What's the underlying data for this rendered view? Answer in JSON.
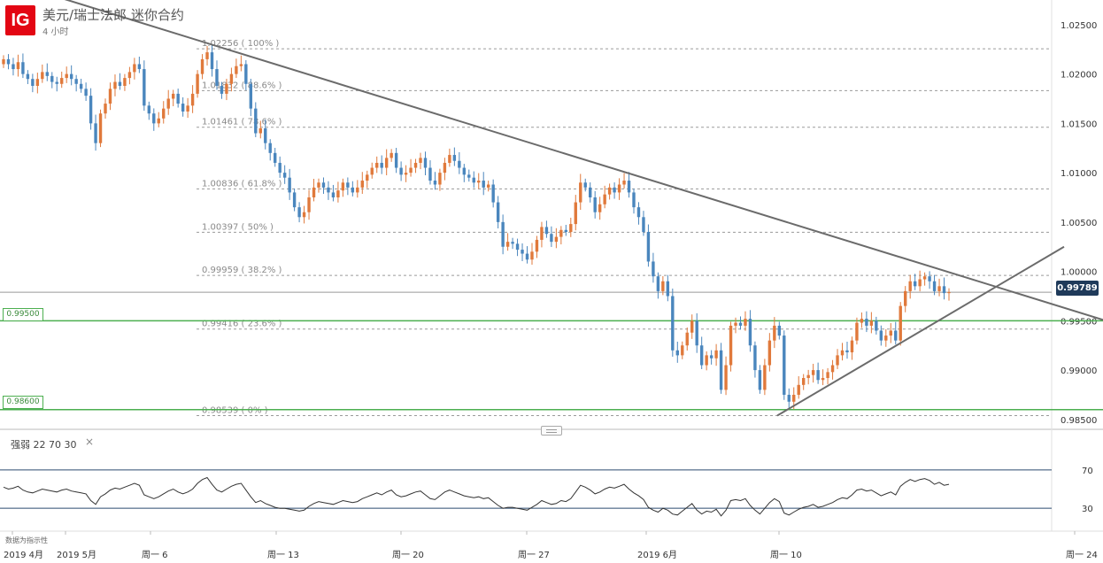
{
  "header": {
    "logo": "IG",
    "title": "美元/瑞士法郎 迷你合约",
    "subtitle": "4 小时"
  },
  "indicator": {
    "label": "强弱  22  70  30",
    "close": "×"
  },
  "source": "数据为指示性",
  "last_price_label": "0.99789",
  "colors": {
    "up": "#e0793b",
    "down": "#4a86bd",
    "trend": "#6b6b6b",
    "level": "#4caf50",
    "fib": "#9a9a9a",
    "rsi": "#333333"
  },
  "chart_data": {
    "type": "candlestick",
    "y_axis": {
      "min": 0.984,
      "max": 1.0275,
      "ticks": [
        "1.02500",
        "1.02000",
        "1.01500",
        "1.01000",
        "1.00500",
        "1.00000",
        "0.99500",
        "0.99000",
        "0.98500"
      ]
    },
    "x_axis": {
      "ticks": [
        "2019 4月",
        "2019 5月",
        "周一 6",
        "周一 13",
        "周一 20",
        "周一 27",
        "2019 6月",
        "周一 10",
        "周一 24"
      ]
    },
    "fib_levels": [
      {
        "label": "1.02256 ( 100% )",
        "value": 1.02256
      },
      {
        "label": "1.01832 ( 88.6% )",
        "value": 1.01832
      },
      {
        "label": "1.01461 ( 78.6% )",
        "value": 1.01461
      },
      {
        "label": "1.00836 ( 61.8% )",
        "value": 1.00836
      },
      {
        "label": "1.00397 ( 50% )",
        "value": 1.00397
      },
      {
        "label": "0.99959 ( 38.2% )",
        "value": 0.99959
      },
      {
        "label": "0.99416 ( 23.6% )",
        "value": 0.99416
      },
      {
        "label": "0.98539 ( 0% )",
        "value": 0.98539
      }
    ],
    "horizontal_levels": [
      {
        "label": "0.99500",
        "value": 0.995
      },
      {
        "label": "0.98600",
        "value": 0.986
      }
    ],
    "last_price": 0.99789,
    "closes": [
      1.0215,
      1.021,
      1.0205,
      1.0212,
      1.02,
      1.0195,
      1.0188,
      1.0195,
      1.0202,
      1.0198,
      1.0192,
      1.019,
      1.0196,
      1.02,
      1.0195,
      1.019,
      1.0185,
      1.0178,
      1.015,
      1.013,
      1.016,
      1.017,
      1.0185,
      1.0192,
      1.0188,
      1.0196,
      1.0202,
      1.021,
      1.0205,
      1.0168,
      1.016,
      1.015,
      1.0155,
      1.0165,
      1.0175,
      1.018,
      1.017,
      1.0162,
      1.0168,
      1.018,
      1.02,
      1.0215,
      1.0222,
      1.0205,
      1.0188,
      1.018,
      1.019,
      1.02,
      1.0208,
      1.021,
      1.019,
      1.0165,
      1.014,
      1.0145,
      1.013,
      1.012,
      1.011,
      1.01,
      1.0095,
      1.008,
      1.0065,
      1.0055,
      1.006,
      1.0075,
      1.0085,
      1.009,
      1.0085,
      1.008,
      1.0075,
      1.0082,
      1.009,
      1.0085,
      1.008,
      1.0085,
      1.0092,
      1.0098,
      1.0105,
      1.011,
      1.0105,
      1.0115,
      1.012,
      1.0105,
      1.0098,
      1.01,
      1.0105,
      1.011,
      1.0115,
      1.0105,
      1.0092,
      1.0088,
      1.01,
      1.011,
      1.0118,
      1.0112,
      1.0105,
      1.0098,
      1.0095,
      1.009,
      1.0092,
      1.0085,
      1.0088,
      1.007,
      1.005,
      1.0025,
      1.003,
      1.0028,
      1.0022,
      1.0018,
      1.0012,
      1.002,
      1.0032,
      1.0045,
      1.0038,
      1.003,
      1.0035,
      1.0042,
      1.004,
      1.0048,
      1.007,
      1.009,
      1.0085,
      1.0075,
      1.006,
      1.0068,
      1.0078,
      1.0085,
      1.008,
      1.0088,
      1.0092,
      1.008,
      1.0065,
      1.0055,
      1.004,
      1.001,
      0.9995,
      0.998,
      0.999,
      0.9975,
      0.992,
      0.9915,
      0.9925,
      0.9938,
      0.995,
      0.9925,
      0.9905,
      0.9915,
      0.9912,
      0.992,
      0.988,
      0.9905,
      0.9945,
      0.9948,
      0.9945,
      0.9952,
      0.9925,
      0.99,
      0.988,
      0.9905,
      0.993,
      0.9945,
      0.9935,
      0.9875,
      0.9868,
      0.9875,
      0.9885,
      0.9892,
      0.9895,
      0.99,
      0.989,
      0.9892,
      0.9898,
      0.9905,
      0.9915,
      0.992,
      0.9918,
      0.993,
      0.9948,
      0.9952,
      0.9945,
      0.995,
      0.994,
      0.993,
      0.9935,
      0.994,
      0.993,
      0.9965,
      0.998,
      0.999,
      0.9985,
      0.9992,
      0.9995,
      0.999,
      0.998,
      0.9985,
      0.9978,
      0.9979
    ],
    "rsi": {
      "levels": [
        70,
        30
      ],
      "values": [
        52,
        50,
        51,
        53,
        49,
        47,
        46,
        48,
        50,
        49,
        48,
        47,
        49,
        50,
        48,
        47,
        46,
        45,
        38,
        34,
        42,
        45,
        49,
        51,
        50,
        52,
        54,
        56,
        54,
        44,
        42,
        40,
        42,
        45,
        48,
        50,
        47,
        45,
        47,
        50,
        56,
        60,
        62,
        55,
        49,
        47,
        50,
        53,
        55,
        56,
        49,
        42,
        36,
        38,
        35,
        33,
        31,
        30,
        30,
        29,
        28,
        27,
        28,
        32,
        35,
        37,
        36,
        35,
        34,
        36,
        38,
        37,
        36,
        37,
        40,
        42,
        44,
        46,
        44,
        47,
        49,
        44,
        42,
        43,
        45,
        47,
        48,
        44,
        40,
        39,
        43,
        47,
        49,
        47,
        45,
        43,
        42,
        41,
        42,
        40,
        41,
        37,
        33,
        30,
        31,
        31,
        30,
        29,
        28,
        31,
        34,
        38,
        36,
        34,
        35,
        38,
        37,
        40,
        47,
        54,
        52,
        49,
        45,
        47,
        50,
        52,
        51,
        53,
        55,
        50,
        46,
        43,
        39,
        31,
        28,
        26,
        30,
        28,
        24,
        23,
        27,
        31,
        35,
        28,
        24,
        27,
        26,
        29,
        22,
        28,
        38,
        39,
        38,
        40,
        33,
        28,
        24,
        30,
        36,
        40,
        37,
        25,
        23,
        26,
        29,
        31,
        32,
        34,
        31,
        32,
        34,
        36,
        39,
        41,
        40,
        44,
        49,
        50,
        48,
        49,
        46,
        43,
        45,
        47,
        44,
        53,
        57,
        60,
        58,
        60,
        61,
        59,
        55,
        57,
        54,
        55
      ]
    }
  }
}
